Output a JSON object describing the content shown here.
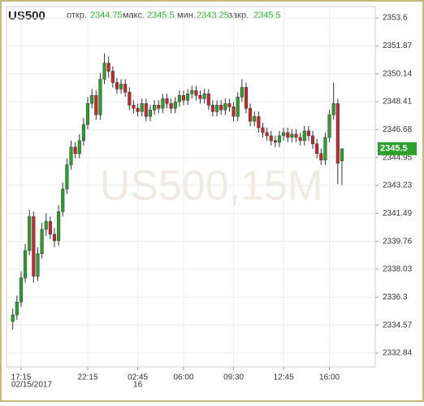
{
  "chart_data": {
    "type": "candlestick",
    "title": "US500",
    "watermark": "US500,15M",
    "stats_labels": [
      "откр.",
      "макс.",
      "мин.",
      "закр."
    ],
    "up_color": "#2ca02c",
    "down_color": "#c8282b",
    "grid": true,
    "ylim": [
      2331.98,
      2354.31
    ],
    "yticks": [
      2353.6,
      2351.87,
      2350.14,
      2348.41,
      2346.68,
      2344.95,
      2343.23,
      2341.49,
      2339.76,
      2338.03,
      2336.3,
      2334.57,
      2332.84
    ],
    "xlim": [
      -1.5,
      87
    ],
    "xticks": [
      {
        "value": 2,
        "label": "17:15"
      },
      {
        "value": 18,
        "label": "22:15"
      },
      {
        "value": 30,
        "label": "02:45"
      },
      {
        "value": 41,
        "label": "06:00"
      },
      {
        "value": 53,
        "label": "09:30"
      },
      {
        "value": 65,
        "label": "12:45"
      },
      {
        "value": 76,
        "label": "16:00"
      }
    ],
    "x_sublabels": [
      {
        "value": 2,
        "label": "02/15/2017"
      },
      {
        "value": 30,
        "label": "16"
      }
    ],
    "x": [
      0,
      1,
      2,
      3,
      4,
      5,
      6,
      7,
      8,
      9,
      10,
      11,
      12,
      13,
      14,
      15,
      16,
      17,
      18,
      19,
      20,
      21,
      22,
      23,
      24,
      25,
      26,
      27,
      28,
      29,
      30,
      31,
      32,
      33,
      34,
      35,
      36,
      37,
      38,
      39,
      40,
      41,
      42,
      43,
      44,
      45,
      46,
      47,
      48,
      49,
      50,
      51,
      52,
      53,
      54,
      55,
      56,
      57,
      58,
      59,
      60,
      61,
      62,
      63,
      64,
      65,
      66,
      67,
      68,
      69,
      70,
      71,
      72,
      73,
      74,
      75,
      76,
      77,
      78,
      79
    ],
    "open": [
      2334.8,
      2335.2,
      2336.0,
      2337.5,
      2339.2,
      2341.3,
      2337.6,
      2339.0,
      2340.5,
      2341.0,
      2340.2,
      2339.8,
      2341.6,
      2343.0,
      2344.5,
      2345.6,
      2345.2,
      2346.0,
      2347.0,
      2348.3,
      2348.8,
      2347.6,
      2349.8,
      2350.8,
      2350.3,
      2349.6,
      2349.2,
      2349.5,
      2349.0,
      2348.2,
      2348.0,
      2347.8,
      2348.3,
      2347.5,
      2347.9,
      2348.2,
      2348.0,
      2348.6,
      2348.3,
      2348.0,
      2348.4,
      2348.8,
      2348.5,
      2348.9,
      2349.1,
      2348.8,
      2348.6,
      2348.9,
      2348.2,
      2347.8,
      2348.2,
      2347.9,
      2348.3,
      2348.1,
      2347.5,
      2348.7,
      2349.3,
      2348.0,
      2347.2,
      2347.5,
      2346.8,
      2346.5,
      2346.3,
      2346.0,
      2345.9,
      2346.3,
      2346.5,
      2346.2,
      2346.4,
      2346.2,
      2346.0,
      2346.6,
      2346.3,
      2345.8,
      2345.2,
      2344.8,
      2346.2,
      2347.6,
      2348.3,
      2344.75
    ],
    "high": [
      2335.6,
      2336.4,
      2337.9,
      2339.6,
      2341.7,
      2341.6,
      2339.4,
      2340.9,
      2341.5,
      2341.3,
      2340.6,
      2342.0,
      2343.4,
      2344.9,
      2346.0,
      2345.9,
      2346.4,
      2347.4,
      2348.7,
      2349.2,
      2349.1,
      2350.2,
      2351.4,
      2351.2,
      2350.6,
      2349.9,
      2349.8,
      2349.8,
      2349.3,
      2348.5,
      2348.3,
      2348.6,
      2348.6,
      2348.2,
      2348.5,
      2348.5,
      2348.9,
      2348.9,
      2348.6,
      2348.7,
      2349.1,
      2349.1,
      2349.2,
      2349.4,
      2349.4,
      2349.1,
      2349.2,
      2349.2,
      2348.5,
      2348.5,
      2348.5,
      2348.6,
      2348.6,
      2348.4,
      2349.0,
      2349.8,
      2349.6,
      2348.3,
      2347.8,
      2347.8,
      2347.1,
      2346.8,
      2346.6,
      2346.3,
      2346.6,
      2346.8,
      2346.8,
      2346.7,
      2346.7,
      2346.5,
      2346.9,
      2346.9,
      2346.6,
      2346.1,
      2345.5,
      2346.5,
      2347.9,
      2349.6,
      2348.6,
      2345.5
    ],
    "low": [
      2334.3,
      2334.9,
      2335.7,
      2337.2,
      2338.9,
      2337.2,
      2337.3,
      2338.7,
      2340.1,
      2339.9,
      2339.4,
      2339.5,
      2341.3,
      2342.7,
      2344.2,
      2344.9,
      2344.9,
      2345.7,
      2346.7,
      2348.0,
      2347.3,
      2347.3,
      2349.5,
      2349.9,
      2349.3,
      2348.9,
      2348.9,
      2348.7,
      2347.9,
      2347.7,
      2347.5,
      2347.5,
      2347.2,
      2347.2,
      2347.6,
      2347.7,
      2347.7,
      2348.0,
      2347.7,
      2347.7,
      2348.1,
      2348.2,
      2348.2,
      2348.6,
      2348.5,
      2348.3,
      2348.3,
      2347.9,
      2347.5,
      2347.5,
      2347.6,
      2347.6,
      2347.8,
      2347.2,
      2347.2,
      2348.4,
      2347.7,
      2346.9,
      2346.9,
      2346.5,
      2346.2,
      2346.0,
      2345.7,
      2345.6,
      2345.6,
      2346.0,
      2345.9,
      2345.9,
      2345.9,
      2345.7,
      2345.7,
      2346.0,
      2345.5,
      2344.9,
      2344.5,
      2344.5,
      2345.9,
      2347.3,
      2343.3,
      2343.25
    ],
    "close": [
      2335.2,
      2336.0,
      2337.5,
      2339.2,
      2341.3,
      2337.6,
      2339.0,
      2340.5,
      2341.0,
      2340.2,
      2339.8,
      2341.6,
      2343.0,
      2344.5,
      2345.6,
      2345.2,
      2346.0,
      2347.0,
      2348.3,
      2348.8,
      2347.6,
      2349.8,
      2350.8,
      2350.3,
      2349.6,
      2349.2,
      2349.5,
      2349.0,
      2348.2,
      2348.0,
      2347.8,
      2348.3,
      2347.5,
      2347.9,
      2348.2,
      2348.0,
      2348.6,
      2348.3,
      2348.0,
      2348.4,
      2348.8,
      2348.5,
      2348.9,
      2349.1,
      2348.8,
      2348.6,
      2348.9,
      2348.2,
      2347.8,
      2348.2,
      2347.9,
      2348.3,
      2348.1,
      2347.5,
      2348.7,
      2349.3,
      2348.0,
      2347.2,
      2347.5,
      2346.8,
      2346.5,
      2346.3,
      2346.0,
      2345.9,
      2346.3,
      2346.5,
      2346.2,
      2346.4,
      2346.2,
      2346.0,
      2346.6,
      2346.3,
      2345.8,
      2345.2,
      2344.8,
      2346.2,
      2347.6,
      2348.3,
      2344.6,
      2345.5
    ]
  }
}
